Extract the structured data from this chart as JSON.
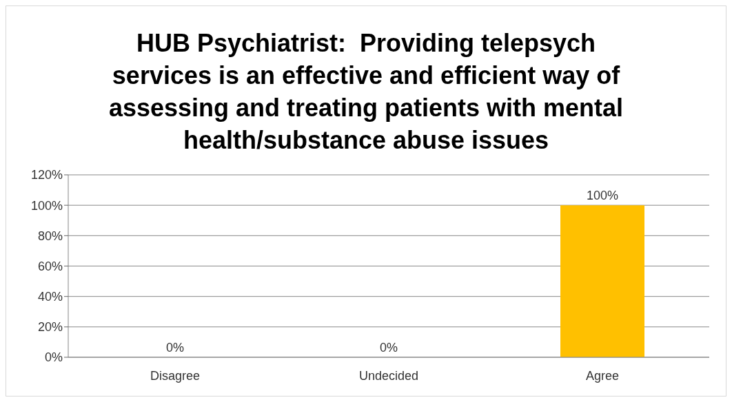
{
  "chart_data": {
    "type": "bar",
    "title": "HUB Psychiatrist:  Providing telepsych services is an effective and efficient way of assessing and treating patients with mental health/substance abuse issues",
    "categories": [
      "Disagree",
      "Undecided",
      "Agree"
    ],
    "values": [
      0,
      0,
      100
    ],
    "color": "#ffc000",
    "value_labels": [
      "0%",
      "0%",
      "100%"
    ],
    "ylim": [
      0,
      120
    ],
    "yticks": [
      {
        "value": 0,
        "label": "0%"
      },
      {
        "value": 20,
        "label": "20%"
      },
      {
        "value": 40,
        "label": "40%"
      },
      {
        "value": 60,
        "label": "60%"
      },
      {
        "value": 80,
        "label": "80%"
      },
      {
        "value": 100,
        "label": "100%"
      },
      {
        "value": 120,
        "label": "120%"
      }
    ],
    "grid": "y",
    "legend": false
  }
}
